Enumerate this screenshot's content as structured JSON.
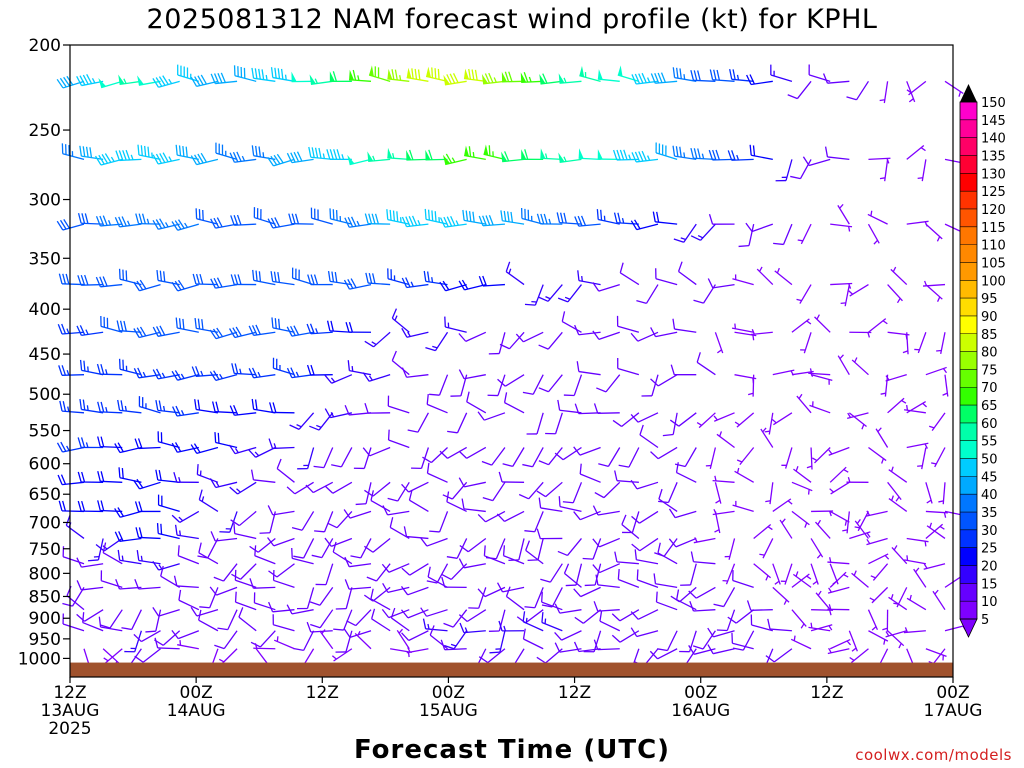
{
  "chart_data": {
    "type": "wind-barb profile",
    "title": "2025081312 NAM forecast wind profile (kt) for KPHL",
    "xlabel": "Forecast Time (UTC)",
    "credit": "coolwx.com/models",
    "y_axis": {
      "ticks": [
        "200",
        "250",
        "300",
        "350",
        "400",
        "450",
        "500",
        "550",
        "600",
        "650",
        "700",
        "750",
        "800",
        "850",
        "900",
        "950",
        "1000"
      ],
      "range": [
        200,
        1000
      ],
      "scale": "log",
      "orientation": "inverted"
    },
    "x_axis": {
      "ticks": [
        {
          "hour": 0,
          "lines": [
            "12Z",
            "13AUG",
            "2025"
          ]
        },
        {
          "hour": 12,
          "lines": [
            "00Z",
            "14AUG"
          ]
        },
        {
          "hour": 24,
          "lines": [
            "12Z"
          ]
        },
        {
          "hour": 36,
          "lines": [
            "00Z",
            "15AUG"
          ]
        },
        {
          "hour": 48,
          "lines": [
            "12Z"
          ]
        },
        {
          "hour": 60,
          "lines": [
            "00Z",
            "16AUG"
          ]
        },
        {
          "hour": 72,
          "lines": [
            "12Z"
          ]
        },
        {
          "hour": 84,
          "lines": [
            "00Z",
            "17AUG"
          ]
        }
      ],
      "range_hours": [
        0,
        84
      ]
    },
    "colorbar": {
      "min": 5,
      "max": 150,
      "levels": [
        "5",
        "10",
        "15",
        "20",
        "25",
        "30",
        "35",
        "40",
        "45",
        "50",
        "55",
        "60",
        "65",
        "70",
        "75",
        "80",
        "85",
        "90",
        "95",
        "100",
        "105",
        "110",
        "115",
        "120",
        "125",
        "130",
        "135",
        "140",
        "145",
        "150"
      ],
      "colors": [
        "#7f00ff",
        "#6600ff",
        "#3300ff",
        "#0000ff",
        "#0033ff",
        "#0055ff",
        "#0077ff",
        "#00aaff",
        "#00ccff",
        "#00ffcc",
        "#00ffaa",
        "#00ff66",
        "#33ff00",
        "#66ff00",
        "#99ff00",
        "#ccff00",
        "#ffff00",
        "#ffdd00",
        "#ffbb00",
        "#ff9900",
        "#ff8800",
        "#ff7700",
        "#ff5500",
        "#ff3300",
        "#ff0000",
        "#ff0033",
        "#ff0066",
        "#ff0099",
        "#ff00cc",
        "#ff00ff"
      ]
    },
    "terrain_color": "#a0522d",
    "surface_pressure_hpa": 1011,
    "rows": [
      {
        "p": 220,
        "speeds": [
          40,
          45,
          50,
          55,
          50,
          45,
          45,
          40,
          40,
          40,
          45,
          45,
          50,
          55,
          60,
          65,
          70,
          75,
          80,
          80,
          80,
          80,
          75,
          70,
          65,
          60,
          55,
          55,
          50,
          50,
          45,
          40,
          35,
          30,
          30,
          25,
          20,
          15,
          10,
          10,
          10,
          10,
          5,
          5,
          5,
          5
        ]
      },
      {
        "p": 270,
        "speeds": [
          35,
          40,
          45,
          45,
          45,
          45,
          40,
          40,
          35,
          35,
          35,
          40,
          40,
          45,
          45,
          50,
          55,
          55,
          60,
          60,
          65,
          65,
          65,
          60,
          60,
          55,
          55,
          50,
          50,
          45,
          45,
          40,
          35,
          35,
          30,
          25,
          20,
          15,
          10,
          10,
          10,
          5,
          5,
          5,
          5,
          5
        ]
      },
      {
        "p": 320,
        "speeds": [
          30,
          30,
          35,
          35,
          35,
          35,
          35,
          30,
          30,
          30,
          30,
          30,
          30,
          30,
          35,
          35,
          40,
          45,
          45,
          45,
          45,
          40,
          40,
          40,
          35,
          35,
          30,
          30,
          25,
          25,
          20,
          20,
          15,
          15,
          10,
          10,
          10,
          10,
          5,
          5,
          5,
          5,
          5,
          5,
          5,
          5
        ]
      },
      {
        "p": 375,
        "speeds": [
          30,
          30,
          30,
          30,
          30,
          30,
          30,
          30,
          30,
          30,
          30,
          30,
          30,
          30,
          30,
          30,
          30,
          25,
          25,
          25,
          20,
          20,
          20,
          15,
          15,
          15,
          15,
          15,
          10,
          10,
          10,
          10,
          10,
          10,
          10,
          5,
          5,
          5,
          5,
          5,
          5,
          5,
          5,
          5,
          5,
          5
        ]
      },
      {
        "p": 425,
        "speeds": [
          25,
          25,
          30,
          30,
          30,
          30,
          30,
          30,
          30,
          30,
          30,
          30,
          30,
          25,
          20,
          20,
          15,
          15,
          15,
          15,
          15,
          10,
          10,
          10,
          10,
          10,
          10,
          10,
          10,
          10,
          10,
          10,
          10,
          5,
          5,
          5,
          5,
          5,
          5,
          5,
          5,
          5,
          5,
          5,
          5,
          5
        ]
      },
      {
        "p": 475,
        "speeds": [
          25,
          25,
          25,
          25,
          25,
          25,
          25,
          25,
          25,
          25,
          25,
          25,
          25,
          20,
          15,
          15,
          15,
          10,
          10,
          10,
          10,
          10,
          10,
          10,
          10,
          10,
          10,
          10,
          10,
          10,
          10,
          10,
          10,
          10,
          5,
          5,
          5,
          5,
          5,
          5,
          5,
          5,
          5,
          5,
          5,
          5
        ]
      },
      {
        "p": 525,
        "speeds": [
          25,
          25,
          25,
          25,
          25,
          25,
          25,
          20,
          20,
          20,
          20,
          20,
          15,
          15,
          15,
          10,
          10,
          10,
          10,
          10,
          10,
          10,
          10,
          10,
          10,
          10,
          10,
          10,
          10,
          10,
          10,
          10,
          10,
          5,
          5,
          5,
          5,
          5,
          5,
          5,
          5,
          5,
          5,
          5,
          5,
          5
        ]
      },
      {
        "p": 575,
        "speeds": [
          25,
          25,
          20,
          20,
          20,
          20,
          20,
          20,
          20,
          15,
          15,
          15,
          15,
          10,
          10,
          10,
          10,
          10,
          10,
          10,
          10,
          10,
          10,
          10,
          10,
          10,
          10,
          10,
          10,
          10,
          10,
          10,
          10,
          5,
          5,
          5,
          5,
          5,
          5,
          5,
          5,
          5,
          5,
          5,
          5,
          5
        ]
      },
      {
        "p": 630,
        "speeds": [
          20,
          20,
          20,
          20,
          20,
          20,
          15,
          15,
          15,
          15,
          10,
          10,
          10,
          10,
          10,
          10,
          10,
          10,
          10,
          10,
          10,
          10,
          10,
          10,
          10,
          10,
          10,
          10,
          10,
          10,
          10,
          10,
          10,
          5,
          5,
          5,
          5,
          5,
          5,
          5,
          5,
          5,
          5,
          5,
          5,
          5
        ]
      },
      {
        "p": 680,
        "speeds": [
          20,
          20,
          20,
          20,
          20,
          20,
          15,
          15,
          15,
          10,
          10,
          10,
          10,
          10,
          10,
          10,
          10,
          10,
          10,
          10,
          10,
          10,
          10,
          10,
          10,
          10,
          10,
          10,
          10,
          10,
          10,
          10,
          10,
          5,
          5,
          5,
          5,
          5,
          5,
          5,
          5,
          5,
          5,
          5,
          5,
          5
        ]
      },
      {
        "p": 730,
        "speeds": [
          15,
          15,
          15,
          20,
          20,
          20,
          15,
          10,
          10,
          10,
          10,
          10,
          10,
          10,
          10,
          10,
          10,
          10,
          10,
          10,
          10,
          10,
          10,
          10,
          10,
          10,
          10,
          10,
          10,
          10,
          10,
          10,
          10,
          5,
          5,
          5,
          5,
          5,
          5,
          5,
          5,
          5,
          5,
          5,
          5,
          5
        ]
      },
      {
        "p": 780,
        "speeds": [
          10,
          10,
          10,
          15,
          15,
          15,
          10,
          10,
          10,
          10,
          10,
          10,
          10,
          10,
          10,
          10,
          10,
          10,
          10,
          10,
          10,
          10,
          10,
          10,
          10,
          10,
          10,
          10,
          10,
          10,
          10,
          10,
          10,
          10,
          5,
          5,
          5,
          5,
          5,
          5,
          5,
          5,
          5,
          5,
          5,
          5
        ]
      },
      {
        "p": 830,
        "speeds": [
          10,
          10,
          10,
          10,
          10,
          10,
          10,
          10,
          10,
          10,
          10,
          10,
          10,
          10,
          10,
          10,
          10,
          10,
          10,
          10,
          10,
          10,
          10,
          10,
          10,
          10,
          10,
          10,
          10,
          10,
          10,
          10,
          10,
          10,
          10,
          10,
          5,
          5,
          5,
          5,
          5,
          5,
          5,
          5,
          5,
          5
        ]
      },
      {
        "p": 880,
        "speeds": [
          10,
          10,
          10,
          10,
          10,
          10,
          10,
          10,
          10,
          10,
          10,
          10,
          10,
          10,
          10,
          10,
          10,
          10,
          10,
          10,
          10,
          10,
          10,
          10,
          10,
          10,
          10,
          10,
          10,
          10,
          10,
          10,
          10,
          10,
          10,
          10,
          10,
          5,
          5,
          5,
          5,
          5,
          5,
          5,
          5,
          5
        ]
      },
      {
        "p": 930,
        "speeds": [
          10,
          10,
          10,
          15,
          10,
          10,
          10,
          10,
          10,
          10,
          10,
          10,
          10,
          10,
          10,
          10,
          10,
          10,
          10,
          15,
          15,
          15,
          15,
          15,
          15,
          15,
          10,
          10,
          10,
          10,
          10,
          10,
          10,
          10,
          10,
          10,
          10,
          10,
          5,
          5,
          5,
          5,
          5,
          5,
          5,
          5
        ]
      },
      {
        "p": 975,
        "speeds": [
          5,
          5,
          5,
          10,
          10,
          10,
          5,
          5,
          5,
          5,
          5,
          5,
          5,
          5,
          5,
          5,
          5,
          5,
          5,
          10,
          10,
          10,
          10,
          10,
          10,
          10,
          10,
          10,
          10,
          10,
          10,
          10,
          10,
          10,
          10,
          10,
          10,
          10,
          5,
          5,
          5,
          5,
          5,
          5,
          5,
          5
        ]
      }
    ]
  }
}
